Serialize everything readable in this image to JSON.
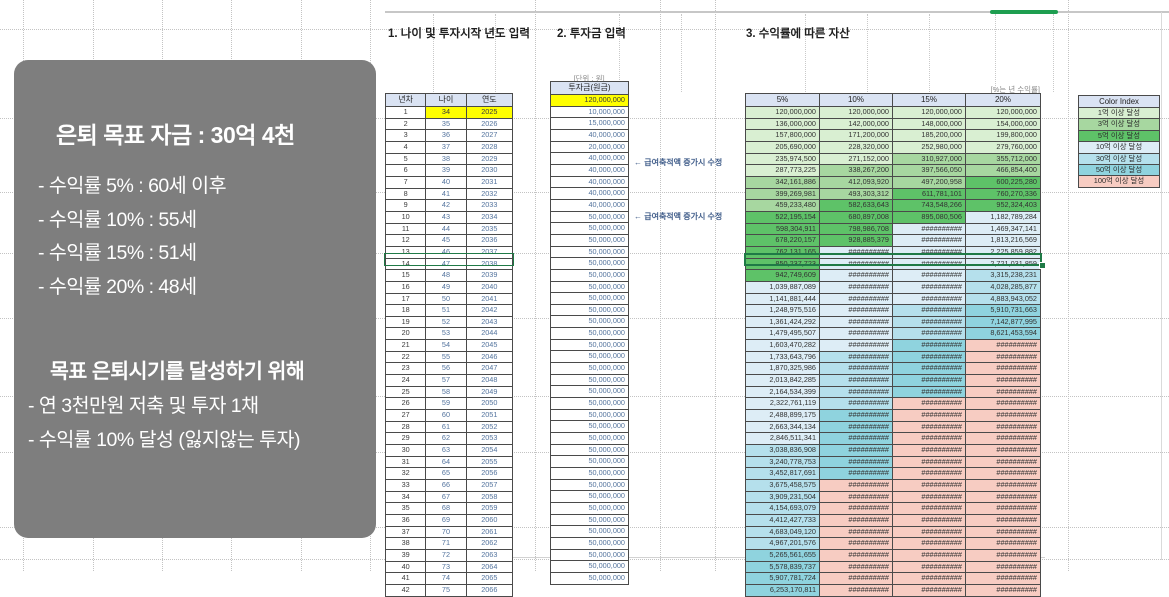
{
  "info_box": {
    "title": "은퇴 목표 자금 : 30억 4천",
    "lines": [
      "- 수익률   5% : 60세 이후",
      "- 수익률 10% : 55세",
      "- 수익률 15% : 51세",
      "- 수익률 20% : 48세"
    ],
    "subtitle": "목표 은퇴시기를 달성하기 위해",
    "sublines": [
      "- 연 3천만원 저축 및 투자 1채",
      "- 수익률 10% 달성 (잃지않는 투자)"
    ]
  },
  "sections": {
    "s1": "1. 나이 및 투자시작 년도 입력",
    "s2": "2. 투자금 입력",
    "s3": "3. 수익률에 따른 자산"
  },
  "table1": {
    "headers": [
      "년차",
      "나이",
      "연도"
    ],
    "rows": [
      [
        1,
        34,
        2025
      ],
      [
        2,
        35,
        2026
      ],
      [
        3,
        36,
        2027
      ],
      [
        4,
        37,
        2028
      ],
      [
        5,
        38,
        2029
      ],
      [
        6,
        39,
        2030
      ],
      [
        7,
        40,
        2031
      ],
      [
        8,
        41,
        2032
      ],
      [
        9,
        42,
        2033
      ],
      [
        10,
        43,
        2034
      ],
      [
        11,
        44,
        2035
      ],
      [
        12,
        45,
        2036
      ],
      [
        13,
        46,
        2037
      ],
      [
        14,
        47,
        2038
      ],
      [
        15,
        48,
        2039
      ],
      [
        16,
        49,
        2040
      ],
      [
        17,
        50,
        2041
      ],
      [
        18,
        51,
        2042
      ],
      [
        19,
        52,
        2043
      ],
      [
        20,
        53,
        2044
      ],
      [
        21,
        54,
        2045
      ],
      [
        22,
        55,
        2046
      ],
      [
        23,
        56,
        2047
      ],
      [
        24,
        57,
        2048
      ],
      [
        25,
        58,
        2049
      ],
      [
        26,
        59,
        2050
      ],
      [
        27,
        60,
        2051
      ],
      [
        28,
        61,
        2052
      ],
      [
        29,
        62,
        2053
      ],
      [
        30,
        63,
        2054
      ],
      [
        31,
        64,
        2055
      ],
      [
        32,
        65,
        2056
      ],
      [
        33,
        66,
        2057
      ],
      [
        34,
        67,
        2058
      ],
      [
        35,
        68,
        2059
      ],
      [
        36,
        69,
        2060
      ],
      [
        37,
        70,
        2061
      ],
      [
        38,
        71,
        2062
      ],
      [
        39,
        72,
        2063
      ],
      [
        40,
        73,
        2064
      ],
      [
        41,
        74,
        2065
      ],
      [
        42,
        75,
        2066
      ]
    ]
  },
  "invest": {
    "unit_note": "[단위 : 원]",
    "header": "투자금(원금)",
    "values": [
      "120,000,000",
      "10,000,000",
      "15,000,000",
      "40,000,000",
      "20,000,000",
      "40,000,000",
      "40,000,000",
      "40,000,000",
      "40,000,000",
      "40,000,000",
      "50,000,000",
      "50,000,000",
      "50,000,000",
      "50,000,000",
      "50,000,000",
      "50,000,000",
      "50,000,000",
      "50,000,000",
      "50,000,000",
      "50,000,000",
      "50,000,000",
      "50,000,000",
      "50,000,000",
      "50,000,000",
      "50,000,000",
      "50,000,000",
      "50,000,000",
      "50,000,000",
      "50,000,000",
      "50,000,000",
      "50,000,000",
      "50,000,000",
      "50,000,000",
      "50,000,000",
      "50,000,000",
      "50,000,000",
      "50,000,000",
      "50,000,000",
      "50,000,000",
      "50,000,000",
      "50,000,000",
      "50,000,000"
    ],
    "annotations": [
      {
        "row": 6,
        "text": "← 급여축적액 증가시 수정"
      },
      {
        "row": 11,
        "text": "← 급여축적액 증가시 수정"
      }
    ]
  },
  "assets": {
    "percent_note": "[%는 년 수익률]",
    "headers": [
      "5%",
      "10%",
      "15%",
      "20%"
    ],
    "display": [
      [
        "120,000,000",
        "120,000,000",
        "120,000,000",
        "120,000,000"
      ],
      [
        "136,000,000",
        "142,000,000",
        "148,000,000",
        "154,000,000"
      ],
      [
        "157,800,000",
        "171,200,000",
        "185,200,000",
        "199,800,000"
      ],
      [
        "205,690,000",
        "228,320,000",
        "252,980,000",
        "279,760,000"
      ],
      [
        "235,974,500",
        "271,152,000",
        "310,927,000",
        "355,712,000"
      ],
      [
        "287,773,225",
        "338,267,200",
        "397,566,050",
        "466,854,400"
      ],
      [
        "342,161,886",
        "412,093,920",
        "497,200,958",
        "600,225,280"
      ],
      [
        "399,269,981",
        "493,303,312",
        "611,781,101",
        "760,270,336"
      ],
      [
        "459,233,480",
        "582,633,643",
        "743,548,266",
        "952,324,403"
      ],
      [
        "522,195,154",
        "680,897,008",
        "895,080,506",
        "1,182,789,284"
      ],
      [
        "598,304,911",
        "798,986,708",
        "##########",
        "1,469,347,141"
      ],
      [
        "678,220,157",
        "928,885,379",
        "##########",
        "1,813,216,569"
      ],
      [
        "762,131,165",
        "##########",
        "##########",
        "2,225,859,882"
      ],
      [
        "850,237,723",
        "##########",
        "##########",
        "2,721,031,859"
      ],
      [
        "942,749,609",
        "##########",
        "##########",
        "3,315,238,231"
      ],
      [
        "1,039,887,089",
        "##########",
        "##########",
        "4,028,285,877"
      ],
      [
        "1,141,881,444",
        "##########",
        "##########",
        "4,883,943,052"
      ],
      [
        "1,248,975,516",
        "##########",
        "##########",
        "5,910,731,663"
      ],
      [
        "1,361,424,292",
        "##########",
        "##########",
        "7,142,877,995"
      ],
      [
        "1,479,495,507",
        "##########",
        "##########",
        "8,621,453,594"
      ],
      [
        "1,603,470,282",
        "##########",
        "##########",
        "##########"
      ],
      [
        "1,733,643,796",
        "##########",
        "##########",
        "##########"
      ],
      [
        "1,870,325,986",
        "##########",
        "##########",
        "##########"
      ],
      [
        "2,013,842,285",
        "##########",
        "##########",
        "##########"
      ],
      [
        "2,164,534,399",
        "##########",
        "##########",
        "##########"
      ],
      [
        "2,322,761,119",
        "##########",
        "##########",
        "##########"
      ],
      [
        "2,488,899,175",
        "##########",
        "##########",
        "##########"
      ],
      [
        "2,663,344,134",
        "##########",
        "##########",
        "##########"
      ],
      [
        "2,846,511,341",
        "##########",
        "##########",
        "##########"
      ],
      [
        "3,038,836,908",
        "##########",
        "##########",
        "##########"
      ],
      [
        "3,240,778,753",
        "##########",
        "##########",
        "##########"
      ],
      [
        "3,452,817,691",
        "##########",
        "##########",
        "##########"
      ],
      [
        "3,675,458,575",
        "##########",
        "##########",
        "##########"
      ],
      [
        "3,909,231,504",
        "##########",
        "##########",
        "##########"
      ],
      [
        "4,154,693,079",
        "##########",
        "##########",
        "##########"
      ],
      [
        "4,412,427,733",
        "##########",
        "##########",
        "##########"
      ],
      [
        "4,683,049,120",
        "##########",
        "##########",
        "##########"
      ],
      [
        "4,967,201,576",
        "##########",
        "##########",
        "##########"
      ],
      [
        "5,265,561,655",
        "##########",
        "##########",
        "##########"
      ],
      [
        "5,578,839,737",
        "##########",
        "##########",
        "##########"
      ],
      [
        "5,907,781,724",
        "##########",
        "##########",
        "##########"
      ],
      [
        "6,253,170,811",
        "##########",
        "##########",
        "##########"
      ]
    ],
    "tiers": [
      [
        "1",
        "1",
        "1",
        "1"
      ],
      [
        "1",
        "1",
        "1",
        "1"
      ],
      [
        "1",
        "1",
        "1",
        "1"
      ],
      [
        "1",
        "1",
        "1",
        "1"
      ],
      [
        "1",
        "1",
        "3",
        "3"
      ],
      [
        "1",
        "3",
        "3",
        "3"
      ],
      [
        "3",
        "3",
        "3",
        "5"
      ],
      [
        "3",
        "3",
        "5",
        "5"
      ],
      [
        "3",
        "5",
        "5",
        "5"
      ],
      [
        "5",
        "5",
        "5",
        "10"
      ],
      [
        "5",
        "5",
        "10",
        "10"
      ],
      [
        "5",
        "5",
        "10",
        "10"
      ],
      [
        "5",
        "10",
        "10",
        "10"
      ],
      [
        "5",
        "10",
        "10",
        "10"
      ],
      [
        "5",
        "10",
        "10",
        "30"
      ],
      [
        "10",
        "10",
        "10",
        "30"
      ],
      [
        "10",
        "10",
        "10",
        "30"
      ],
      [
        "10",
        "10",
        "30",
        "50"
      ],
      [
        "10",
        "10",
        "30",
        "50"
      ],
      [
        "10",
        "10",
        "30",
        "50"
      ],
      [
        "10",
        "10",
        "50",
        "100"
      ],
      [
        "10",
        "30",
        "50",
        "100"
      ],
      [
        "10",
        "30",
        "50",
        "100"
      ],
      [
        "10",
        "30",
        "50",
        "100"
      ],
      [
        "10",
        "30",
        "50",
        "100"
      ],
      [
        "10",
        "30",
        "100",
        "100"
      ],
      [
        "10",
        "50",
        "100",
        "100"
      ],
      [
        "10",
        "50",
        "100",
        "100"
      ],
      [
        "10",
        "50",
        "100",
        "100"
      ],
      [
        "30",
        "50",
        "100",
        "100"
      ],
      [
        "30",
        "50",
        "100",
        "100"
      ],
      [
        "30",
        "50",
        "100",
        "100"
      ],
      [
        "30",
        "100",
        "100",
        "100"
      ],
      [
        "30",
        "100",
        "100",
        "100"
      ],
      [
        "30",
        "100",
        "100",
        "100"
      ],
      [
        "30",
        "100",
        "100",
        "100"
      ],
      [
        "30",
        "100",
        "100",
        "100"
      ],
      [
        "30",
        "100",
        "100",
        "100"
      ],
      [
        "50",
        "100",
        "100",
        "100"
      ],
      [
        "50",
        "100",
        "100",
        "100"
      ],
      [
        "50",
        "100",
        "100",
        "100"
      ],
      [
        "50",
        "100",
        "100",
        "100"
      ]
    ]
  },
  "tier_colors": {
    "1": "#d9efd2",
    "3": "#a7d7a0",
    "5": "#5ec268",
    "10": "#ddedf6",
    "30": "#b5e0ec",
    "50": "#8fd3de",
    "100": "#f7ccc2"
  },
  "color_index": {
    "header": "Color Index",
    "items": [
      {
        "label": "1억 이상 달성",
        "tier": "1"
      },
      {
        "label": "3억 이상 달성",
        "tier": "3"
      },
      {
        "label": "5억 이상 달성",
        "tier": "5"
      },
      {
        "label": "10억 이상 달성",
        "tier": "10"
      },
      {
        "label": "30억 이상 달성",
        "tier": "30"
      },
      {
        "label": "50억 이상 달성",
        "tier": "50"
      },
      {
        "label": "100억 이상 달성",
        "tier": "100"
      }
    ]
  },
  "selection": {
    "row": 15
  }
}
